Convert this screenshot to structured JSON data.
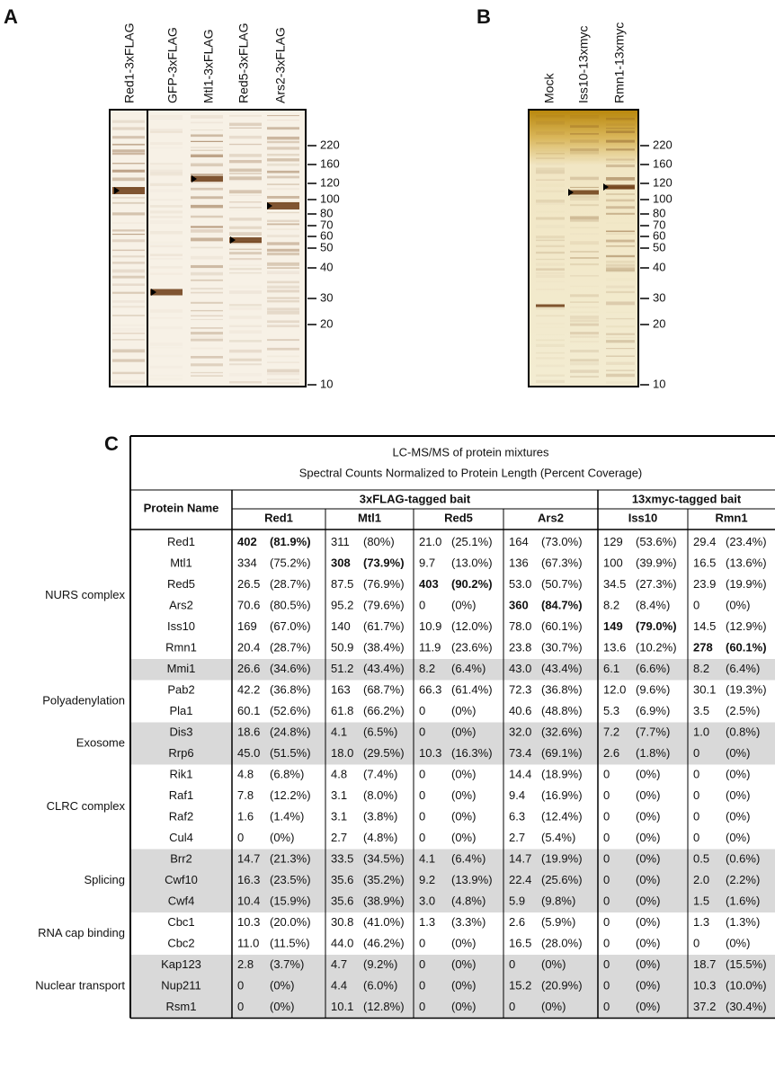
{
  "panels": [
    {
      "label": "A",
      "lanes": [
        "Red1-3xFLAG",
        "GFP-3xFLAG",
        "Mtl1-3xFLAG",
        "Red5-3xFLAG",
        "Ars2-3xFLAG"
      ],
      "markers": [
        220,
        160,
        120,
        100,
        80,
        70,
        60,
        50,
        40,
        30,
        20,
        10
      ]
    },
    {
      "label": "B",
      "lanes": [
        "Mock",
        "Iss10-13xmyc",
        "Rmn1-13xmyc"
      ],
      "markers": [
        220,
        160,
        120,
        100,
        80,
        70,
        60,
        50,
        40,
        30,
        20,
        10
      ]
    }
  ],
  "table": {
    "label": "C",
    "title": [
      "LC-MS/MS of protein mixtures",
      "Spectral Counts Normalized to Protein Length (Percent Coverage)"
    ],
    "name_header": "Protein Name",
    "bait_groups": [
      {
        "label": "3xFLAG-tagged bait",
        "columns": [
          "Red1",
          "Mtl1",
          "Red5",
          "Ars2"
        ]
      },
      {
        "label": "13xmyc-tagged bait",
        "columns": [
          "Iss10",
          "Rmn1"
        ]
      }
    ],
    "groups": [
      {
        "label": "NURS complex",
        "shaded": false,
        "rows": [
          {
            "name": "Red1",
            "bold": 0,
            "cells": [
              [
                "402",
                "(81.9%)"
              ],
              [
                "311",
                "(80%)"
              ],
              [
                "21.0",
                "(25.1%)"
              ],
              [
                "164",
                "(73.0%)"
              ],
              [
                "129",
                "(53.6%)"
              ],
              [
                "29.4",
                "(23.4%)"
              ]
            ]
          },
          {
            "name": "Mtl1",
            "bold": 1,
            "cells": [
              [
                "334",
                "(75.2%)"
              ],
              [
                "308",
                "(73.9%)"
              ],
              [
                "9.7",
                "(13.0%)"
              ],
              [
                "136",
                "(67.3%)"
              ],
              [
                "100",
                "(39.9%)"
              ],
              [
                "16.5",
                "(13.6%)"
              ]
            ]
          },
          {
            "name": "Red5",
            "bold": 2,
            "cells": [
              [
                "26.5",
                "(28.7%)"
              ],
              [
                "87.5",
                "(76.9%)"
              ],
              [
                "403",
                "(90.2%)"
              ],
              [
                "53.0",
                "(50.7%)"
              ],
              [
                "34.5",
                "(27.3%)"
              ],
              [
                "23.9",
                "(19.9%)"
              ]
            ]
          },
          {
            "name": "Ars2",
            "bold": 3,
            "cells": [
              [
                "70.6",
                "(80.5%)"
              ],
              [
                "95.2",
                "(79.6%)"
              ],
              [
                "0",
                "(0%)"
              ],
              [
                "360",
                "(84.7%)"
              ],
              [
                "8.2",
                "(8.4%)"
              ],
              [
                "0",
                "(0%)"
              ]
            ]
          },
          {
            "name": "Iss10",
            "bold": 4,
            "cells": [
              [
                "169",
                "(67.0%)"
              ],
              [
                "140",
                "(61.7%)"
              ],
              [
                "10.9",
                "(12.0%)"
              ],
              [
                "78.0",
                "(60.1%)"
              ],
              [
                "149",
                "(79.0%)"
              ],
              [
                "14.5",
                "(12.9%)"
              ]
            ]
          },
          {
            "name": "Rmn1",
            "bold": 5,
            "cells": [
              [
                "20.4",
                "(28.7%)"
              ],
              [
                "50.9",
                "(38.4%)"
              ],
              [
                "11.9",
                "(23.6%)"
              ],
              [
                "23.8",
                "(30.7%)"
              ],
              [
                "13.6",
                "(10.2%)"
              ],
              [
                "278",
                "(60.1%)"
              ]
            ]
          }
        ]
      },
      {
        "shaded": true,
        "rows": [
          {
            "name": "Mmi1",
            "cells": [
              [
                "26.6",
                "(34.6%)"
              ],
              [
                "51.2",
                "(43.4%)"
              ],
              [
                "8.2",
                "(6.4%)"
              ],
              [
                "43.0",
                "(43.4%)"
              ],
              [
                "6.1",
                "(6.6%)"
              ],
              [
                "8.2",
                "(6.4%)"
              ]
            ]
          }
        ]
      },
      {
        "label": "Polyadenylation",
        "shaded": false,
        "rows": [
          {
            "name": "Pab2",
            "cells": [
              [
                "42.2",
                "(36.8%)"
              ],
              [
                "163",
                "(68.7%)"
              ],
              [
                "66.3",
                "(61.4%)"
              ],
              [
                "72.3",
                "(36.8%)"
              ],
              [
                "12.0",
                "(9.6%)"
              ],
              [
                "30.1",
                "(19.3%)"
              ]
            ]
          },
          {
            "name": "Pla1",
            "cells": [
              [
                "60.1",
                "(52.6%)"
              ],
              [
                "61.8",
                "(66.2%)"
              ],
              [
                "0",
                "(0%)"
              ],
              [
                "40.6",
                "(48.8%)"
              ],
              [
                "5.3",
                "(6.9%)"
              ],
              [
                "3.5",
                "(2.5%)"
              ]
            ]
          }
        ]
      },
      {
        "label": "Exosome",
        "shaded": true,
        "rows": [
          {
            "name": "Dis3",
            "cells": [
              [
                "18.6",
                "(24.8%)"
              ],
              [
                "4.1",
                "(6.5%)"
              ],
              [
                "0",
                "(0%)"
              ],
              [
                "32.0",
                "(32.6%)"
              ],
              [
                "7.2",
                "(7.7%)"
              ],
              [
                "1.0",
                "(0.8%)"
              ]
            ]
          },
          {
            "name": "Rrp6",
            "cells": [
              [
                "45.0",
                "(51.5%)"
              ],
              [
                "18.0",
                "(29.5%)"
              ],
              [
                "10.3",
                "(16.3%)"
              ],
              [
                "73.4",
                "(69.1%)"
              ],
              [
                "2.6",
                "(1.8%)"
              ],
              [
                "0",
                "(0%)"
              ]
            ]
          }
        ]
      },
      {
        "label": "CLRC complex",
        "shaded": false,
        "rows": [
          {
            "name": "Rik1",
            "cells": [
              [
                "4.8",
                "(6.8%)"
              ],
              [
                "4.8",
                "(7.4%)"
              ],
              [
                "0",
                "(0%)"
              ],
              [
                "14.4",
                "(18.9%)"
              ],
              [
                "0",
                "(0%)"
              ],
              [
                "0",
                "(0%)"
              ]
            ]
          },
          {
            "name": "Raf1",
            "cells": [
              [
                "7.8",
                "(12.2%)"
              ],
              [
                "3.1",
                "(8.0%)"
              ],
              [
                "0",
                "(0%)"
              ],
              [
                "9.4",
                "(16.9%)"
              ],
              [
                "0",
                "(0%)"
              ],
              [
                "0",
                "(0%)"
              ]
            ]
          },
          {
            "name": "Raf2",
            "cells": [
              [
                "1.6",
                "(1.4%)"
              ],
              [
                "3.1",
                "(3.8%)"
              ],
              [
                "0",
                "(0%)"
              ],
              [
                "6.3",
                "(12.4%)"
              ],
              [
                "0",
                "(0%)"
              ],
              [
                "0",
                "(0%)"
              ]
            ]
          },
          {
            "name": "Cul4",
            "cells": [
              [
                "0",
                "(0%)"
              ],
              [
                "2.7",
                "(4.8%)"
              ],
              [
                "0",
                "(0%)"
              ],
              [
                "2.7",
                "(5.4%)"
              ],
              [
                "0",
                "(0%)"
              ],
              [
                "0",
                "(0%)"
              ]
            ]
          }
        ]
      },
      {
        "label": "Splicing",
        "shaded": true,
        "rows": [
          {
            "name": "Brr2",
            "cells": [
              [
                "14.7",
                "(21.3%)"
              ],
              [
                "33.5",
                "(34.5%)"
              ],
              [
                "4.1",
                "(6.4%)"
              ],
              [
                "14.7",
                "(19.9%)"
              ],
              [
                "0",
                "(0%)"
              ],
              [
                "0.5",
                "(0.6%)"
              ]
            ]
          },
          {
            "name": "Cwf10",
            "cells": [
              [
                "16.3",
                "(23.5%)"
              ],
              [
                "35.6",
                "(35.2%)"
              ],
              [
                "9.2",
                "(13.9%)"
              ],
              [
                "22.4",
                "(25.6%)"
              ],
              [
                "0",
                "(0%)"
              ],
              [
                "2.0",
                "(2.2%)"
              ]
            ]
          },
          {
            "name": "Cwf4",
            "cells": [
              [
                "10.4",
                "(15.9%)"
              ],
              [
                "35.6",
                "(38.9%)"
              ],
              [
                "3.0",
                "(4.8%)"
              ],
              [
                "5.9",
                "(9.8%)"
              ],
              [
                "0",
                "(0%)"
              ],
              [
                "1.5",
                "(1.6%)"
              ]
            ]
          }
        ]
      },
      {
        "label": "RNA cap binding",
        "shaded": false,
        "rows": [
          {
            "name": "Cbc1",
            "cells": [
              [
                "10.3",
                "(20.0%)"
              ],
              [
                "30.8",
                "(41.0%)"
              ],
              [
                "1.3",
                "(3.3%)"
              ],
              [
                "2.6",
                "(5.9%)"
              ],
              [
                "0",
                "(0%)"
              ],
              [
                "1.3",
                "(1.3%)"
              ]
            ]
          },
          {
            "name": "Cbc2",
            "cells": [
              [
                "11.0",
                "(11.5%)"
              ],
              [
                "44.0",
                "(46.2%)"
              ],
              [
                "0",
                "(0%)"
              ],
              [
                "16.5",
                "(28.0%)"
              ],
              [
                "0",
                "(0%)"
              ],
              [
                "0",
                "(0%)"
              ]
            ]
          }
        ]
      },
      {
        "label": "Nuclear transport",
        "shaded": true,
        "rows": [
          {
            "name": "Kap123",
            "cells": [
              [
                "2.8",
                "(3.7%)"
              ],
              [
                "4.7",
                "(9.2%)"
              ],
              [
                "0",
                "(0%)"
              ],
              [
                "0",
                "(0%)"
              ],
              [
                "0",
                "(0%)"
              ],
              [
                "18.7",
                "(15.5%)"
              ]
            ]
          },
          {
            "name": "Nup211",
            "cells": [
              [
                "0",
                "(0%)"
              ],
              [
                "4.4",
                "(6.0%)"
              ],
              [
                "0",
                "(0%)"
              ],
              [
                "15.2",
                "(20.9%)"
              ],
              [
                "0",
                "(0%)"
              ],
              [
                "10.3",
                "(10.0%)"
              ]
            ]
          },
          {
            "name": "Rsm1",
            "cells": [
              [
                "0",
                "(0%)"
              ],
              [
                "10.1",
                "(12.8%)"
              ],
              [
                "0",
                "(0%)"
              ],
              [
                "0",
                "(0%)"
              ],
              [
                "0",
                "(0%)"
              ],
              [
                "37.2",
                "(30.4%)"
              ]
            ]
          }
        ]
      }
    ]
  }
}
